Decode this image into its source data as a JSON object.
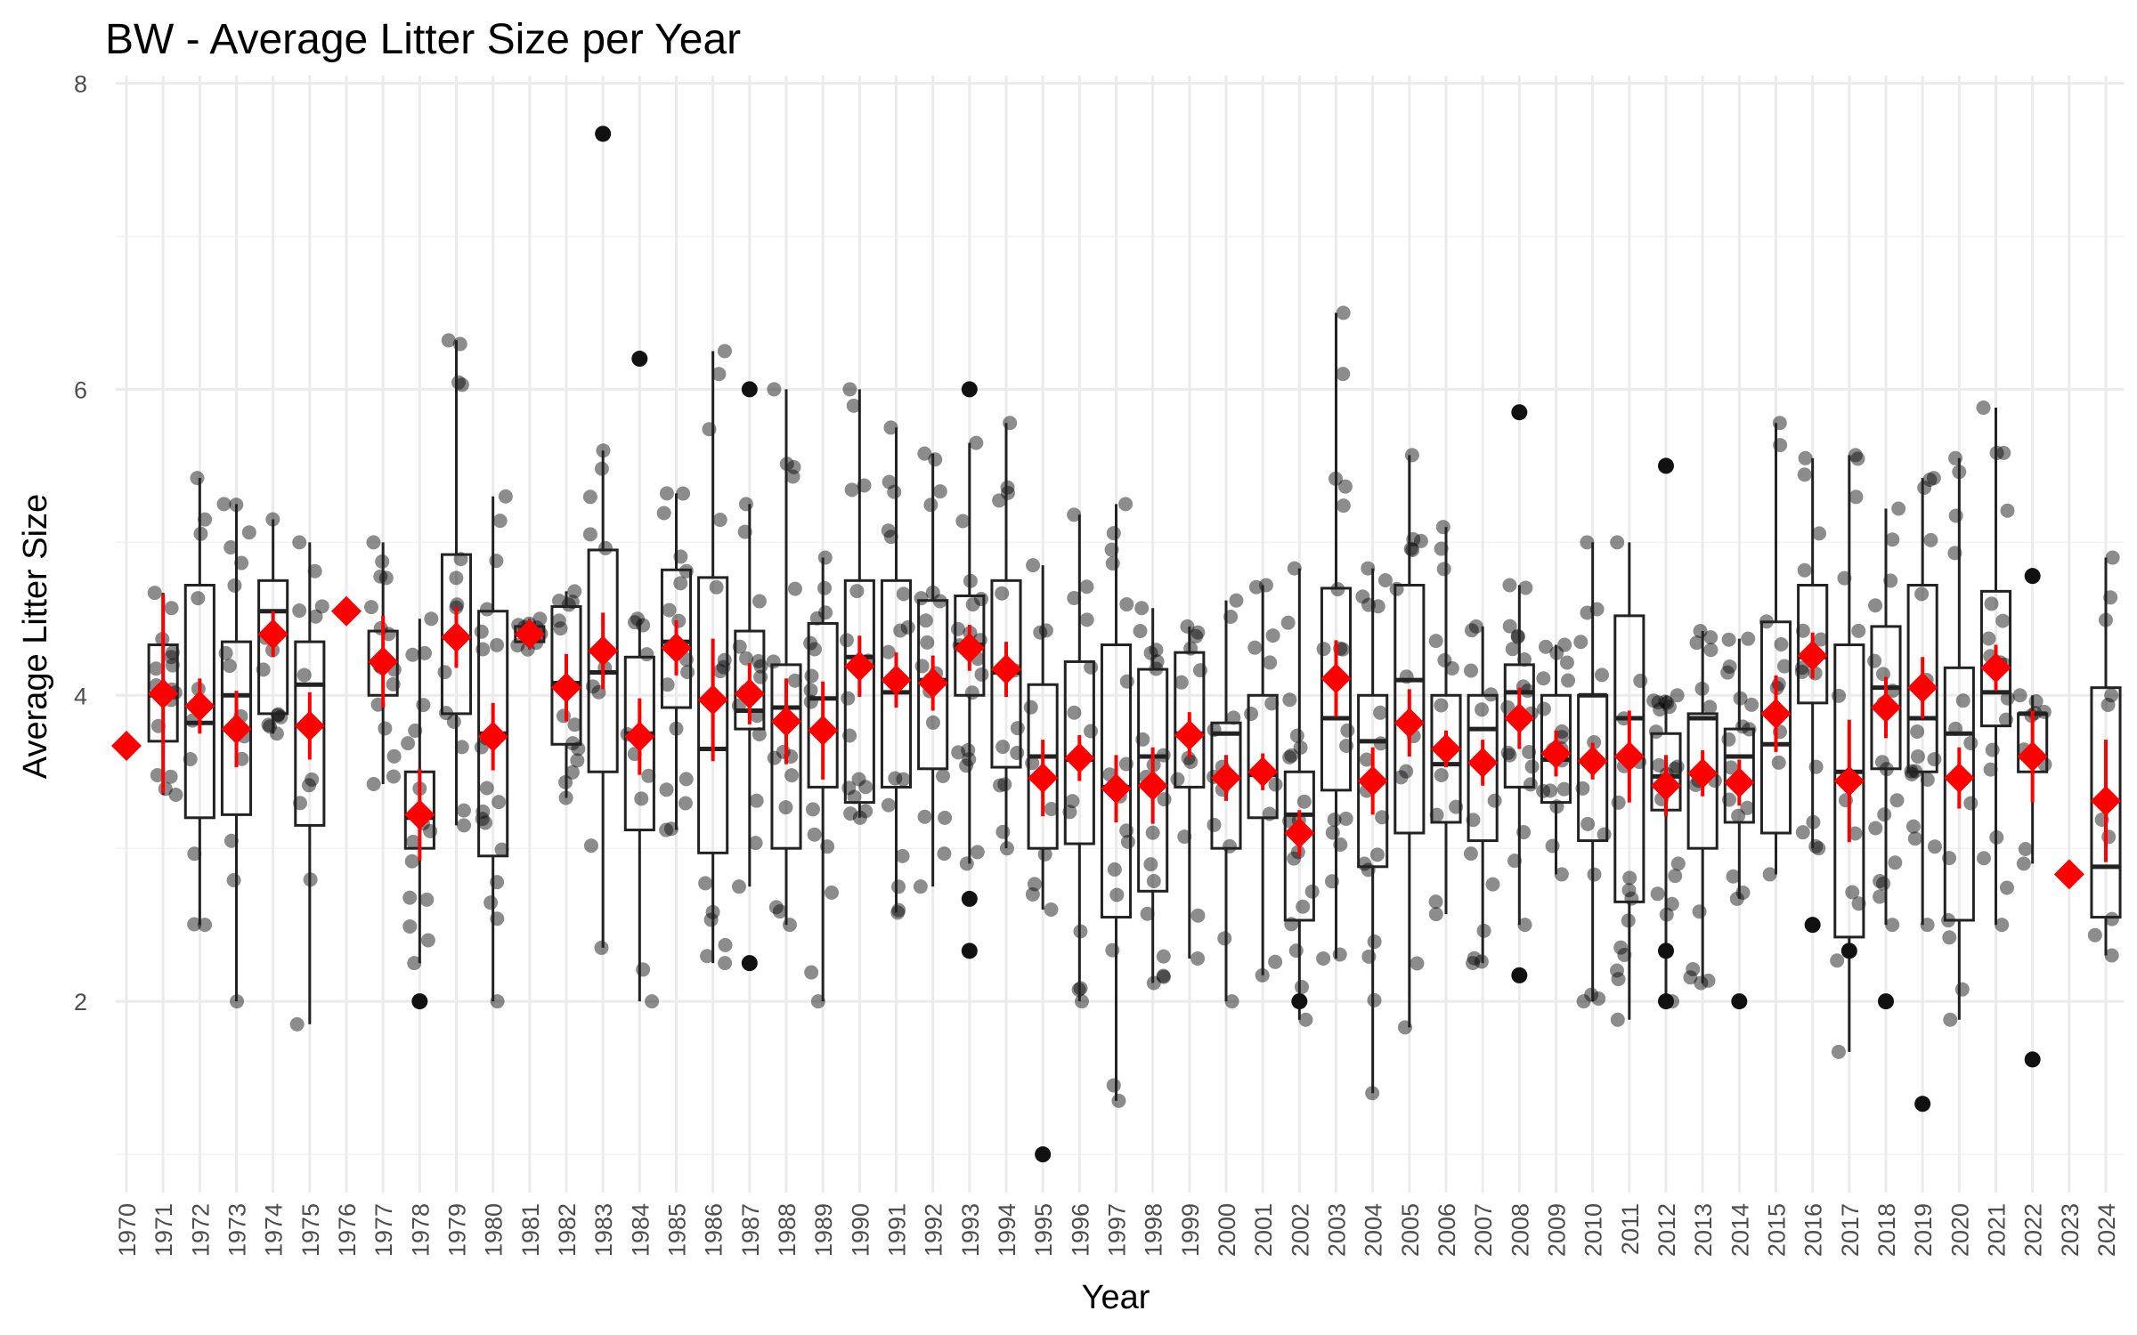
{
  "chart_data": {
    "type": "boxplot",
    "title": "BW - Average Litter Size per Year",
    "xlabel": "Year",
    "ylabel": "Average Litter Size",
    "ylim": [
      0.75,
      8.05
    ],
    "y_ticks": [
      2,
      4,
      6,
      8
    ],
    "grid": true,
    "legend": "none",
    "colors": {
      "mean_marker": "#ff0000",
      "box_stroke": "#222222",
      "points": "#000000"
    },
    "categories": [
      "1970",
      "1971",
      "1972",
      "1973",
      "1974",
      "1975",
      "1976",
      "1977",
      "1978",
      "1979",
      "1980",
      "1981",
      "1982",
      "1983",
      "1984",
      "1985",
      "1986",
      "1987",
      "1988",
      "1989",
      "1990",
      "1991",
      "1992",
      "1993",
      "1994",
      "1995",
      "1996",
      "1997",
      "1998",
      "1999",
      "2000",
      "2001",
      "2002",
      "2003",
      "2004",
      "2005",
      "2006",
      "2007",
      "2008",
      "2009",
      "2010",
      "2011",
      "2012",
      "2013",
      "2014",
      "2015",
      "2016",
      "2017",
      "2018",
      "2019",
      "2020",
      "2021",
      "2022",
      "2023",
      "2024"
    ],
    "boxes": [
      null,
      {
        "min": 3.35,
        "q1": 3.7,
        "median": 4.0,
        "q3": 4.33,
        "max": 4.67
      },
      {
        "min": 2.5,
        "q1": 3.2,
        "median": 3.82,
        "q3": 4.72,
        "max": 5.42
      },
      {
        "min": 2.0,
        "q1": 3.22,
        "median": 4.0,
        "q3": 4.35,
        "max": 5.25
      },
      {
        "min": 3.75,
        "q1": 3.88,
        "median": 4.55,
        "q3": 4.75,
        "max": 5.15
      },
      {
        "min": 1.85,
        "q1": 3.15,
        "median": 4.07,
        "q3": 4.35,
        "max": 5.0
      },
      null,
      {
        "min": 3.42,
        "q1": 4.0,
        "median": 4.22,
        "q3": 4.42,
        "max": 5.0
      },
      {
        "min": 2.25,
        "q1": 3.0,
        "median": 3.2,
        "q3": 3.5,
        "max": 4.5
      },
      {
        "min": 3.15,
        "q1": 3.88,
        "median": 4.38,
        "q3": 4.92,
        "max": 6.32
      },
      {
        "min": 2.0,
        "q1": 2.95,
        "median": 3.75,
        "q3": 4.55,
        "max": 5.3
      },
      {
        "min": 4.3,
        "q1": 4.35,
        "median": 4.4,
        "q3": 4.45,
        "max": 4.5
      },
      {
        "min": 3.33,
        "q1": 3.68,
        "median": 4.08,
        "q3": 4.58,
        "max": 4.68
      },
      {
        "min": 2.35,
        "q1": 3.5,
        "median": 4.15,
        "q3": 4.95,
        "max": 5.6
      },
      {
        "min": 2.0,
        "q1": 3.12,
        "median": 3.75,
        "q3": 4.25,
        "max": 4.5
      },
      {
        "min": 3.12,
        "q1": 3.92,
        "median": 4.35,
        "q3": 4.82,
        "max": 5.32
      },
      {
        "min": 2.25,
        "q1": 2.97,
        "median": 3.65,
        "q3": 4.77,
        "max": 6.25
      },
      {
        "min": 2.75,
        "q1": 3.78,
        "median": 3.9,
        "q3": 4.42,
        "max": 5.25
      },
      {
        "min": 2.5,
        "q1": 3.0,
        "median": 3.92,
        "q3": 4.2,
        "max": 6.0
      },
      {
        "min": 2.0,
        "q1": 3.4,
        "median": 3.98,
        "q3": 4.47,
        "max": 4.9
      },
      {
        "min": 3.2,
        "q1": 3.3,
        "median": 4.25,
        "q3": 4.75,
        "max": 6.0
      },
      {
        "min": 2.58,
        "q1": 3.4,
        "median": 4.02,
        "q3": 4.75,
        "max": 5.75
      },
      {
        "min": 2.75,
        "q1": 3.52,
        "median": 4.1,
        "q3": 4.62,
        "max": 5.58
      },
      {
        "min": 2.9,
        "q1": 4.0,
        "median": 4.33,
        "q3": 4.65,
        "max": 5.65
      },
      {
        "min": 3.0,
        "q1": 3.53,
        "median": 4.15,
        "q3": 4.75,
        "max": 5.78
      },
      {
        "min": 2.6,
        "q1": 3.0,
        "median": 3.6,
        "q3": 4.07,
        "max": 4.85
      },
      {
        "min": 2.0,
        "q1": 3.03,
        "median": 3.58,
        "q3": 4.22,
        "max": 5.18
      },
      {
        "min": 1.35,
        "q1": 2.55,
        "median": 3.4,
        "q3": 4.33,
        "max": 5.25
      },
      {
        "min": 2.12,
        "q1": 2.72,
        "median": 3.6,
        "q3": 4.17,
        "max": 4.57
      },
      {
        "min": 2.28,
        "q1": 3.4,
        "median": 3.75,
        "q3": 4.28,
        "max": 4.45
      },
      {
        "min": 2.0,
        "q1": 3.0,
        "median": 3.75,
        "q3": 3.82,
        "max": 4.62
      },
      {
        "min": 2.17,
        "q1": 3.2,
        "median": 3.48,
        "q3": 4.0,
        "max": 4.72
      },
      {
        "min": 1.88,
        "q1": 2.53,
        "median": 3.22,
        "q3": 3.5,
        "max": 4.83
      },
      {
        "min": 2.28,
        "q1": 3.38,
        "median": 3.85,
        "q3": 4.7,
        "max": 6.5
      },
      {
        "min": 1.4,
        "q1": 2.88,
        "median": 3.7,
        "q3": 4.0,
        "max": 4.83
      },
      {
        "min": 1.83,
        "q1": 3.1,
        "median": 4.1,
        "q3": 4.72,
        "max": 5.57
      },
      {
        "min": 2.57,
        "q1": 3.17,
        "median": 3.55,
        "q3": 4.0,
        "max": 5.1
      },
      {
        "min": 2.25,
        "q1": 3.05,
        "median": 3.78,
        "q3": 4.0,
        "max": 4.45
      },
      {
        "min": 2.5,
        "q1": 3.4,
        "median": 4.02,
        "q3": 4.2,
        "max": 4.72
      },
      {
        "min": 2.83,
        "q1": 3.3,
        "median": 3.58,
        "q3": 4.0,
        "max": 4.33
      },
      {
        "min": 2.0,
        "q1": 3.05,
        "median": 4.0,
        "q3": 4.0,
        "max": 5.0
      },
      {
        "min": 1.88,
        "q1": 2.65,
        "median": 3.85,
        "q3": 4.52,
        "max": 5.0
      },
      {
        "min": 2.0,
        "q1": 3.25,
        "median": 3.47,
        "q3": 3.75,
        "max": 4.0
      },
      {
        "min": 2.12,
        "q1": 3.0,
        "median": 3.85,
        "q3": 3.88,
        "max": 4.42
      },
      {
        "min": 2.67,
        "q1": 3.17,
        "median": 3.6,
        "q3": 3.78,
        "max": 4.37
      },
      {
        "min": 2.83,
        "q1": 3.1,
        "median": 3.68,
        "q3": 4.48,
        "max": 5.78
      },
      {
        "min": 3.0,
        "q1": 3.95,
        "median": 4.25,
        "q3": 4.72,
        "max": 5.55
      },
      {
        "min": 1.67,
        "q1": 2.42,
        "median": 3.5,
        "q3": 4.33,
        "max": 5.57
      },
      {
        "min": 2.5,
        "q1": 3.52,
        "median": 4.05,
        "q3": 4.45,
        "max": 5.22
      },
      {
        "min": 2.5,
        "q1": 3.5,
        "median": 3.85,
        "q3": 4.72,
        "max": 5.42
      },
      {
        "min": 1.88,
        "q1": 2.53,
        "median": 3.75,
        "q3": 4.18,
        "max": 5.55
      },
      {
        "min": 2.5,
        "q1": 3.8,
        "median": 4.02,
        "q3": 4.68,
        "max": 5.88
      },
      {
        "min": 2.9,
        "q1": 3.5,
        "median": 3.88,
        "q3": 3.88,
        "max": 4.0
      },
      null,
      {
        "min": 2.3,
        "q1": 2.55,
        "median": 2.88,
        "q3": 4.05,
        "max": 4.9
      }
    ],
    "means": [
      3.67,
      4.01,
      3.93,
      3.78,
      4.4,
      3.8,
      4.55,
      4.22,
      3.22,
      4.38,
      3.73,
      4.4,
      4.05,
      4.29,
      3.73,
      4.31,
      3.97,
      4.01,
      3.83,
      3.77,
      4.19,
      4.1,
      4.08,
      4.31,
      4.17,
      3.46,
      3.59,
      3.39,
      3.41,
      3.74,
      3.46,
      3.5,
      3.1,
      4.11,
      3.44,
      3.82,
      3.65,
      3.56,
      3.85,
      3.62,
      3.57,
      3.6,
      3.41,
      3.49,
      3.43,
      3.88,
      4.26,
      3.44,
      3.92,
      4.05,
      3.46,
      4.18,
      3.6,
      2.83,
      3.31
    ],
    "mean_err": [
      0,
      0.65,
      0.18,
      0.25,
      0.15,
      0.22,
      0,
      0.3,
      0.3,
      0.2,
      0.22,
      0.05,
      0.22,
      0.25,
      0.25,
      0.18,
      0.4,
      0.2,
      0.28,
      0.32,
      0.2,
      0.18,
      0.18,
      0.15,
      0.18,
      0.25,
      0.15,
      0.22,
      0.25,
      0.15,
      0.15,
      0.12,
      0.15,
      0.25,
      0.22,
      0.22,
      0.12,
      0.15,
      0.2,
      0.15,
      0.12,
      0.3,
      0.2,
      0.15,
      0.15,
      0.25,
      0.15,
      0.4,
      0.2,
      0.2,
      0.2,
      0.15,
      0.3,
      0,
      0.4
    ],
    "outliers": [
      {
        "year": "1978",
        "y": 2.0
      },
      {
        "year": "1983",
        "y": 7.67
      },
      {
        "year": "1984",
        "y": 6.2
      },
      {
        "year": "1987",
        "y": 6.0
      },
      {
        "year": "1987",
        "y": 2.25
      },
      {
        "year": "1993",
        "y": 6.0
      },
      {
        "year": "1993",
        "y": 2.67
      },
      {
        "year": "1993",
        "y": 2.33
      },
      {
        "year": "1995",
        "y": 1.0
      },
      {
        "year": "2002",
        "y": 2.0
      },
      {
        "year": "2008",
        "y": 5.85
      },
      {
        "year": "2008",
        "y": 2.17
      },
      {
        "year": "2012",
        "y": 5.5
      },
      {
        "year": "2012",
        "y": 2.33
      },
      {
        "year": "2012",
        "y": 2.0
      },
      {
        "year": "2014",
        "y": 2.0
      },
      {
        "year": "2016",
        "y": 2.5
      },
      {
        "year": "2017",
        "y": 2.33
      },
      {
        "year": "2018",
        "y": 2.0
      },
      {
        "year": "2019",
        "y": 1.33
      },
      {
        "year": "2022",
        "y": 4.78
      },
      {
        "year": "2022",
        "y": 1.62
      }
    ]
  }
}
